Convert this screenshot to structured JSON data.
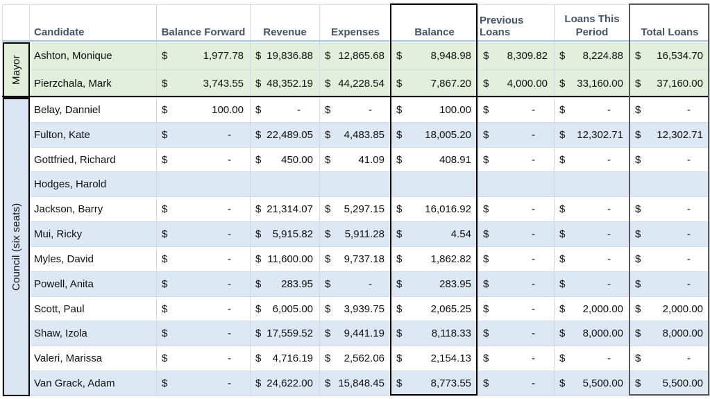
{
  "currency_symbol": "$",
  "colors": {
    "green": "#e2efda",
    "blue": "#dce9f5",
    "labelblue": "#d9e6f2",
    "grid": "#d3d9e0",
    "headtext": "#44546a",
    "underline": "#a3c6e8",
    "blackborder": "#000000",
    "graybox": "#595959"
  },
  "table": {
    "columns": [
      {
        "key": "candidate",
        "label": "Candidate"
      },
      {
        "key": "balance_forward",
        "label": "Balance Forward"
      },
      {
        "key": "revenue",
        "label": "Revenue"
      },
      {
        "key": "expenses",
        "label": "Expenses"
      },
      {
        "key": "balance",
        "label": "Balance"
      },
      {
        "key": "previous_loans",
        "label": "Previous Loans"
      },
      {
        "key": "loans_this_period",
        "label": "Loans This Period"
      },
      {
        "key": "total_loans",
        "label": "Total Loans"
      }
    ],
    "groups": [
      {
        "label": "Mayor",
        "rows": [
          {
            "candidate": "Ashton, Monique",
            "balance_forward": "1,977.78",
            "revenue": "19,836.88",
            "expenses": "12,865.68",
            "balance": "8,948.98",
            "previous_loans": "8,309.82",
            "loans_this_period": "8,224.88",
            "total_loans": "16,534.70"
          },
          {
            "candidate": "Pierzchala, Mark",
            "balance_forward": "3,743.55",
            "revenue": "48,352.19",
            "expenses": "44,228.54",
            "balance": "7,867.20",
            "previous_loans": "4,000.00",
            "loans_this_period": "33,160.00",
            "total_loans": "37,160.00"
          }
        ]
      },
      {
        "label": "Council (six seats)",
        "rows": [
          {
            "candidate": "Belay, Danniel",
            "balance_forward": "100.00",
            "revenue": "-",
            "expenses": "-",
            "balance": "100.00",
            "previous_loans": "-",
            "loans_this_period": "-",
            "total_loans": "-"
          },
          {
            "candidate": "Fulton, Kate",
            "balance_forward": "-",
            "revenue": "22,489.05",
            "expenses": "4,483.85",
            "balance": "18,005.20",
            "previous_loans": "-",
            "loans_this_period": "12,302.71",
            "total_loans": "12,302.71"
          },
          {
            "candidate": "Gottfried, Richard",
            "balance_forward": "-",
            "revenue": "450.00",
            "expenses": "41.09",
            "balance": "408.91",
            "previous_loans": "-",
            "loans_this_period": "-",
            "total_loans": "-"
          },
          {
            "candidate": "Hodges, Harold",
            "balance_forward": "",
            "revenue": "",
            "expenses": "",
            "balance": "",
            "previous_loans": "",
            "loans_this_period": "",
            "total_loans": ""
          },
          {
            "candidate": "Jackson, Barry",
            "balance_forward": "-",
            "revenue": "21,314.07",
            "expenses": "5,297.15",
            "balance": "16,016.92",
            "previous_loans": "-",
            "loans_this_period": "-",
            "total_loans": "-"
          },
          {
            "candidate": "Mui, Ricky",
            "balance_forward": "-",
            "revenue": "5,915.82",
            "expenses": "5,911.28",
            "balance": "4.54",
            "previous_loans": "-",
            "loans_this_period": "-",
            "total_loans": "-"
          },
          {
            "candidate": "Myles, David",
            "balance_forward": "-",
            "revenue": "11,600.00",
            "expenses": "9,737.18",
            "balance": "1,862.82",
            "previous_loans": "-",
            "loans_this_period": "-",
            "total_loans": "-"
          },
          {
            "candidate": "Powell, Anita",
            "balance_forward": "-",
            "revenue": "283.95",
            "expenses": "-",
            "balance": "283.95",
            "previous_loans": "-",
            "loans_this_period": "-",
            "total_loans": "-"
          },
          {
            "candidate": "Scott, Paul",
            "balance_forward": "-",
            "revenue": "6,005.00",
            "expenses": "3,939.75",
            "balance": "2,065.25",
            "previous_loans": "-",
            "loans_this_period": "2,000.00",
            "total_loans": "2,000.00"
          },
          {
            "candidate": "Shaw, Izola",
            "balance_forward": "-",
            "revenue": "17,559.52",
            "expenses": "9,441.19",
            "balance": "8,118.33",
            "previous_loans": "-",
            "loans_this_period": "8,000.00",
            "total_loans": "8,000.00"
          },
          {
            "candidate": "Valeri, Marissa",
            "balance_forward": "-",
            "revenue": "4,716.19",
            "expenses": "2,562.06",
            "balance": "2,154.13",
            "previous_loans": "-",
            "loans_this_period": "-",
            "total_loans": "-"
          },
          {
            "candidate": "Van Grack, Adam",
            "balance_forward": "-",
            "revenue": "24,622.00",
            "expenses": "15,848.45",
            "balance": "8,773.55",
            "previous_loans": "-",
            "loans_this_period": "5,500.00",
            "total_loans": "5,500.00"
          }
        ]
      }
    ]
  }
}
